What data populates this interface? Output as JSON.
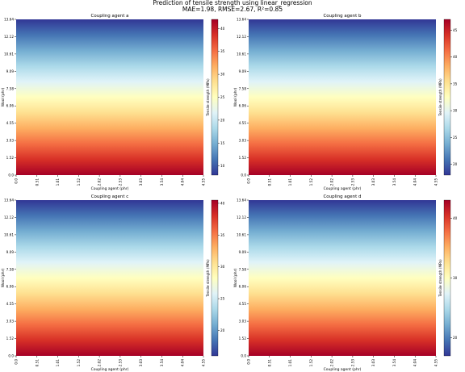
{
  "figure": {
    "title_line1": "Prediction of tensile strength using linear_regression",
    "title_line2": "MAE=1.98, RMSE=2.67, R²=0.85"
  },
  "colorscale": {
    "name": "RdYlBu_r",
    "stops": [
      "#313695",
      "#4575b4",
      "#74add1",
      "#abd9e9",
      "#e0f3f8",
      "#ffffbf",
      "#fee090",
      "#fdae61",
      "#f46d43",
      "#d73027",
      "#a50026"
    ]
  },
  "chart_data": [
    {
      "type": "heatmap",
      "title": "Coupling agent a",
      "xlabel": "Coupling agent (phr)",
      "ylabel": "Wool (phr)",
      "colorbar_label": "Tensile strength (MPa)",
      "x_ticks": [
        "0.0",
        "0.51",
        "1.01",
        "1.52",
        "2.02",
        "2.53",
        "3.03",
        "3.54",
        "4.04",
        "4.55"
      ],
      "y_ticks": [
        "0.0",
        "1.52",
        "3.03",
        "4.55",
        "6.06",
        "7.58",
        "9.09",
        "10.61",
        "12.12",
        "13.64"
      ],
      "colorbar_ticks": [
        10,
        15,
        20,
        25,
        30,
        35,
        40
      ],
      "value_range": [
        8,
        42
      ],
      "values_by_wool": {
        "wool": [
          0,
          15
        ],
        "tensile_strength": [
          42,
          8
        ]
      }
    },
    {
      "type": "heatmap",
      "title": "Coupling agent b",
      "xlabel": "Coupling agent (phr)",
      "ylabel": "Wool (phr)",
      "colorbar_label": "Tensile strength (MPa)",
      "x_ticks": [
        "0.0",
        "0.51",
        "1.01",
        "1.52",
        "2.02",
        "2.53",
        "3.03",
        "3.54",
        "4.04",
        "4.55"
      ],
      "y_ticks": [
        "0.0",
        "1.52",
        "3.03",
        "4.55",
        "6.06",
        "7.58",
        "9.09",
        "10.61",
        "12.12",
        "13.64"
      ],
      "colorbar_ticks": [
        20,
        25,
        30,
        35,
        40,
        45
      ],
      "value_range": [
        18,
        47
      ],
      "values_by_wool": {
        "wool": [
          0,
          15
        ],
        "tensile_strength": [
          47,
          18
        ]
      }
    },
    {
      "type": "heatmap",
      "title": "Coupling agent c",
      "xlabel": "Coupling agent (phr)",
      "ylabel": "Wool (phr)",
      "colorbar_label": "Tensile strength (MPa)",
      "x_ticks": [
        "0.0",
        "0.51",
        "1.01",
        "1.52",
        "2.02",
        "2.53",
        "3.03",
        "3.54",
        "4.04",
        "4.55"
      ],
      "y_ticks": [
        "0.0",
        "1.52",
        "3.03",
        "4.55",
        "6.06",
        "7.58",
        "9.09",
        "10.61",
        "12.12",
        "13.64"
      ],
      "colorbar_ticks": [
        20,
        25,
        30,
        35,
        40
      ],
      "value_range": [
        16,
        40.5
      ],
      "values_by_wool": {
        "wool": [
          0,
          15
        ],
        "tensile_strength": [
          40.5,
          16
        ]
      }
    },
    {
      "type": "heatmap",
      "title": "Coupling agent d",
      "xlabel": "Coupling agent (phr)",
      "ylabel": "Wool (phr)",
      "colorbar_label": "Tensile strength (MPa)",
      "x_ticks": [
        "0.0",
        "0.51",
        "1.01",
        "1.52",
        "2.02",
        "2.53",
        "3.03",
        "3.54",
        "4.04",
        "4.55"
      ],
      "y_ticks": [
        "0.0",
        "1.52",
        "3.03",
        "4.55",
        "6.06",
        "7.58",
        "9.09",
        "10.61",
        "12.12",
        "13.64"
      ],
      "colorbar_ticks": [
        20,
        30,
        40
      ],
      "value_range": [
        17,
        43
      ],
      "values_by_wool": {
        "wool": [
          0,
          15
        ],
        "tensile_strength": [
          43,
          17
        ]
      }
    }
  ]
}
